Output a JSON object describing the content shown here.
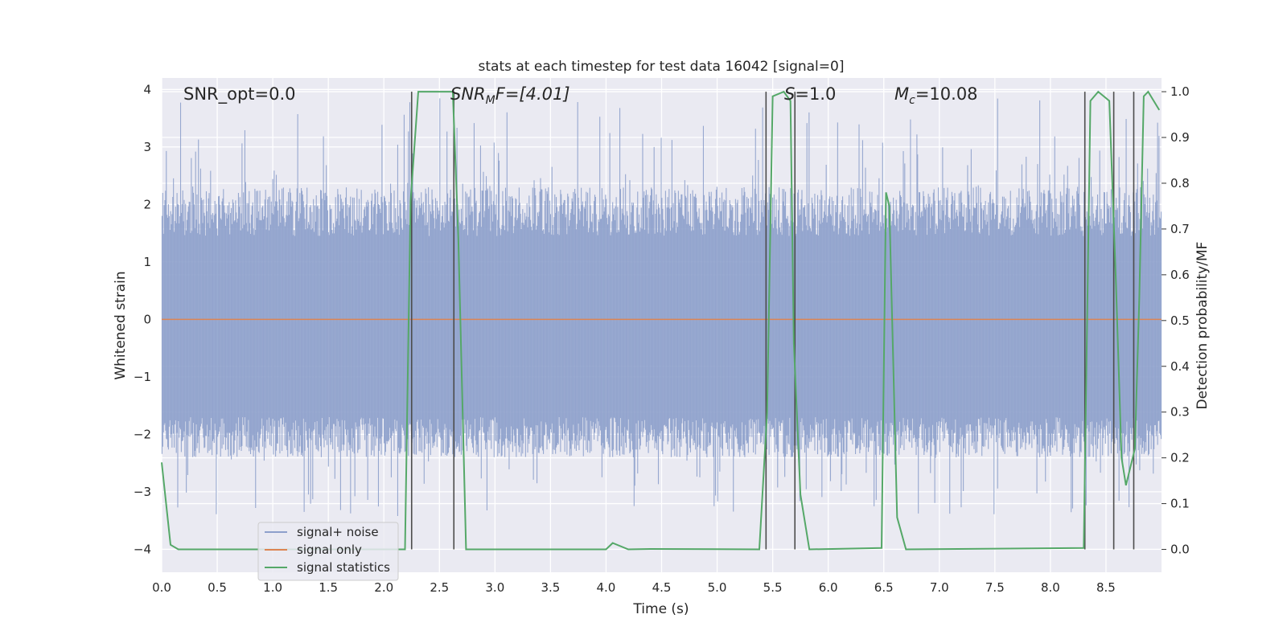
{
  "chart_data": {
    "type": "line",
    "title": "stats at each timestep for test data 16042 [signal=0]",
    "xlabel": "Time (s)",
    "ylabel": "Whitened strain",
    "ylabel_right": "Detection probability/MF",
    "xlim": [
      0.0,
      9.0
    ],
    "ylim": [
      -4.4,
      4.2
    ],
    "ylim_right": [
      -0.05,
      1.03
    ],
    "x_ticks": [
      0.0,
      0.5,
      1.0,
      1.5,
      2.0,
      2.5,
      3.0,
      3.5,
      4.0,
      4.5,
      5.0,
      5.5,
      6.0,
      6.5,
      7.0,
      7.5,
      8.0,
      8.5
    ],
    "x_tick_labels": [
      "0.0",
      "0.5",
      "1.0",
      "1.5",
      "2.0",
      "2.5",
      "3.0",
      "3.5",
      "4.0",
      "4.5",
      "5.0",
      "5.5",
      "6.0",
      "6.5",
      "7.0",
      "7.5",
      "8.0",
      "8.5"
    ],
    "y_ticks": [
      4,
      3,
      2,
      1,
      0,
      -1,
      -2,
      -3,
      -4
    ],
    "y_tick_labels": [
      "4",
      "3",
      "2",
      "1",
      "0",
      "−1",
      "−2",
      "−3",
      "−4"
    ],
    "y_right_ticks": [
      1.0,
      0.9,
      0.8,
      0.7,
      0.6,
      0.5,
      0.4,
      0.3,
      0.2,
      0.1,
      0.0
    ],
    "y_right_tick_labels": [
      "1.0",
      "0.9",
      "0.8",
      "0.7",
      "0.6",
      "0.5",
      "0.4",
      "0.3",
      "0.2",
      "0.1",
      "0.0"
    ],
    "grid": true,
    "legend_position": "lower-left",
    "annotations": {
      "snr_opt": "SNR_opt=0.0",
      "snr_mf_main": "SNR",
      "snr_mf_sub": "M",
      "snr_mf_rest": "F=[4.01]",
      "s_main": "S",
      "s_rest": "=1.0",
      "mc_main": "M",
      "mc_sub": "c",
      "mc_rest": "=10.08"
    },
    "series": [
      {
        "name": "signal+ noise",
        "color": "#8da0cb",
        "kind": "noise",
        "core_band": [
          -1.7,
          1.45
        ],
        "typical_peak": [
          -2.4,
          2.3
        ],
        "extreme_range": [
          -3.45,
          3.85
        ]
      },
      {
        "name": "signal only",
        "color": "#dd8452",
        "values_x": [
          0.0,
          9.0
        ],
        "values_y": [
          0.0,
          0.0
        ]
      },
      {
        "name": "signal statistics",
        "color": "#55a868",
        "axis": "right",
        "x": [
          0.0,
          0.08,
          0.15,
          2.19,
          2.24,
          2.31,
          2.62,
          2.67,
          2.74,
          4.0,
          4.06,
          4.2,
          4.4,
          5.38,
          5.45,
          5.5,
          5.6,
          5.66,
          5.69,
          5.75,
          5.83,
          6.48,
          6.52,
          6.55,
          6.62,
          6.7,
          8.3,
          8.36,
          8.43,
          8.53,
          8.59,
          8.64,
          8.68,
          8.76,
          8.8,
          8.84,
          8.88,
          8.98
        ],
        "y": [
          0.19,
          0.01,
          0.0,
          0.0,
          0.76,
          1.0,
          1.0,
          0.68,
          0.0,
          0.0,
          0.014,
          0.0,
          0.001,
          0.0,
          0.3,
          0.99,
          1.0,
          0.98,
          0.45,
          0.12,
          0.0,
          0.003,
          0.78,
          0.75,
          0.07,
          0.0,
          0.003,
          0.98,
          1.0,
          0.98,
          0.58,
          0.2,
          0.14,
          0.22,
          0.55,
          0.99,
          1.0,
          0.96
        ]
      }
    ],
    "vertical_lines_x": [
      2.25,
      2.63,
      5.44,
      5.7,
      8.31,
      8.57,
      8.75
    ],
    "vertical_line_color": "#4c4c4c"
  }
}
